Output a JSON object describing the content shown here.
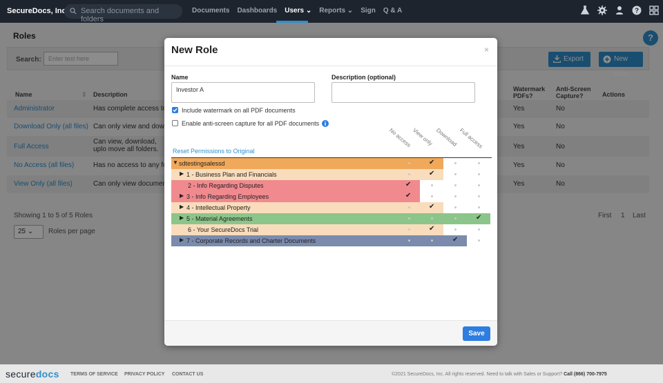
{
  "nav": {
    "brand": "SecureDocs, Inc.",
    "search_placeholder": "Search documents and folders",
    "links": [
      "Documents",
      "Dashboards",
      "Users",
      "Reports",
      "Sign",
      "Q & A"
    ]
  },
  "page": {
    "title": "Roles",
    "help": "?",
    "search_label": "Search:",
    "search_placeholder": "Enter text here",
    "export": "Export",
    "new_role": "New Role",
    "columns": {
      "name": "Name",
      "description": "Description",
      "watermark": "Watermark PDFs?",
      "anti": "Anti-Screen Capture?",
      "actions": "Actions"
    },
    "roles": [
      {
        "name": "Administrator",
        "description": "Has complete access to a",
        "watermark": "Yes",
        "capture": "No"
      },
      {
        "name": "Download Only (all files)",
        "description": "Can only view and downlo",
        "watermark": "Yes",
        "capture": "No"
      },
      {
        "name": "Full Access",
        "description": "Can view, download, uplo move all folders.",
        "watermark": "Yes",
        "capture": "No"
      },
      {
        "name": "No Access (all files)",
        "description": "Has no access to any fold",
        "watermark": "Yes",
        "capture": "No"
      },
      {
        "name": "View Only (all files)",
        "description": "Can only view documents",
        "watermark": "Yes",
        "capture": "No"
      }
    ],
    "showing": "Showing 1 to 5 of 5 Roles",
    "per_page_value": "25",
    "per_page_label": "Roles per page",
    "pagination": {
      "first": "First",
      "page": "1",
      "last": "Last"
    }
  },
  "modal": {
    "title": "New Role",
    "close": "×",
    "name_label": "Name",
    "name_value": "Investor A",
    "desc_label": "Description (optional)",
    "desc_value": "",
    "watermark_checked": true,
    "watermark_label": "Include watermark on all PDF documents",
    "anticapture_checked": false,
    "anticapture_label": "Enable anti-screen capture for all PDF documents",
    "reset_link": "Reset Permissions to Original",
    "perm_columns": [
      "No access",
      "View only",
      "Download",
      "Full access"
    ],
    "tree": [
      {
        "label": "sdtestingsalessd",
        "expanded": true,
        "has_children": true,
        "level": 0,
        "permission": "View only",
        "color": "#f0a85a"
      },
      {
        "label": "1 - Business Plan and Financials",
        "has_children": true,
        "level": 1,
        "permission": "View only",
        "color": "#f9dcbb"
      },
      {
        "label": "2 - Info Regarding Disputes",
        "has_children": false,
        "level": 1,
        "permission": "No access",
        "color": "#f08a8f"
      },
      {
        "label": "3 - Info Regarding Employees",
        "has_children": true,
        "level": 1,
        "permission": "No access",
        "color": "#f08a8f"
      },
      {
        "label": "4 - Intellectual Property",
        "has_children": true,
        "level": 1,
        "permission": "View only",
        "color": "#f9dcbb"
      },
      {
        "label": "5 - Material Agreements",
        "has_children": true,
        "level": 1,
        "permission": "Full access",
        "color": "#8cc58a"
      },
      {
        "label": "6 - Your SecureDocs Trial",
        "has_children": false,
        "level": 1,
        "permission": "View only",
        "color": "#f9dcbb"
      },
      {
        "label": "7 - Corporate Records and Charter Documents",
        "has_children": true,
        "level": 1,
        "permission": "Download",
        "color": "#7b8bad"
      }
    ],
    "save": "Save"
  },
  "footer": {
    "logo_a": "secure",
    "logo_b": "docs",
    "terms": "TERMS OF SERVICE",
    "privacy": "PRIVACY POLICY",
    "contact": "CONTACT US",
    "copyright": "©2021 SecureDocs, Inc. All rights reserved. Need to talk with Sales or Support?",
    "call": "Call (866) 700-7975"
  }
}
